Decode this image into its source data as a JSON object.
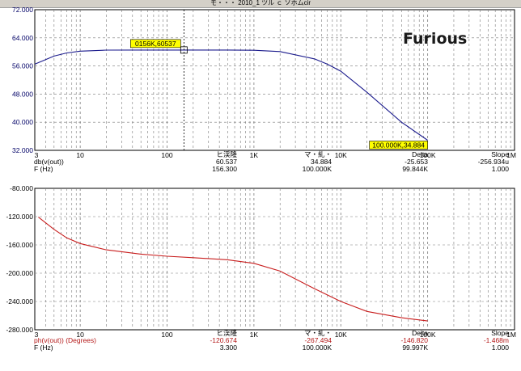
{
  "window": {
    "title": "モ・・・ 2010_1 ツル ｃ ソホムcir"
  },
  "annotation": "Furious",
  "colors": {
    "top_trace": "#1a1a8c",
    "bottom_trace": "#c81e1e",
    "grid": "#7a7a7a",
    "cursor": "#000000",
    "badge": "#ffff00"
  },
  "chart_data": [
    {
      "type": "line",
      "title": "",
      "xscale": "log",
      "xlim": [
        3,
        1000000
      ],
      "ylim": [
        32,
        72
      ],
      "y_ticks": [
        "72.000",
        "64.000",
        "56.000",
        "48.000",
        "40.000",
        "32.000"
      ],
      "x_ticks": [
        "3",
        "10",
        "100",
        "1K",
        "10K",
        "100K"
      ],
      "x_tick_values": [
        3,
        10,
        100,
        1000,
        10000,
        100000
      ],
      "series": [
        {
          "name": "db(v(out))",
          "x": [
            3,
            5,
            7,
            10,
            20,
            50,
            100,
            200,
            500,
            1000,
            2000,
            5000,
            7000,
            10000,
            20000,
            50000,
            100000
          ],
          "y": [
            56.5,
            58.8,
            59.7,
            60.2,
            60.5,
            60.53,
            60.537,
            60.537,
            60.52,
            60.45,
            60.1,
            58.0,
            56.5,
            54.5,
            48.5,
            40.0,
            34.884
          ]
        }
      ],
      "markers": [
        {
          "label": "0156K,60537",
          "x": 156.3,
          "y": 60.537
        },
        {
          "label": "100.000K,34.884",
          "x": 100000,
          "y": 34.884
        }
      ],
      "readout": {
        "headers": [
          "ヒ渓隆",
          "マ・糺・",
          "Delta",
          "Slope"
        ],
        "rows": [
          {
            "label": "db(v(out))",
            "values": [
              "60.537",
              "34.884",
              "-25.653",
              "-256.934u"
            ]
          },
          {
            "label": "F (Hz)",
            "values": [
              "156.300",
              "100.000K",
              "99.844K",
              "1.000"
            ]
          }
        ]
      }
    },
    {
      "type": "line",
      "title": "",
      "xscale": "log",
      "xlim": [
        3,
        1000000
      ],
      "ylim": [
        -280,
        -80
      ],
      "y_ticks": [
        "-80.000",
        "-120.000",
        "-160.000",
        "-200.000",
        "-240.000",
        "-280.000"
      ],
      "x_ticks": [
        "3",
        "10",
        "100",
        "1K",
        "10K",
        "100K"
      ],
      "x_tick_values": [
        3,
        10,
        100,
        1000,
        10000,
        100000
      ],
      "series": [
        {
          "name": "ph(v(out)) (Degrees)",
          "x": [
            3.3,
            5,
            7,
            10,
            20,
            50,
            100,
            200,
            500,
            1000,
            2000,
            5000,
            10000,
            20000,
            50000,
            100000
          ],
          "y": [
            -120.674,
            -138,
            -150,
            -158,
            -167,
            -173,
            -176,
            -178,
            -181,
            -186,
            -197,
            -222,
            -240,
            -254,
            -263,
            -267.494
          ]
        }
      ],
      "readout": {
        "headers": [
          "ヒ渓隆",
          "マ・糺・",
          "Delta",
          "Slope"
        ],
        "rows": [
          {
            "label": "ph(v(out)) (Degrees)",
            "values": [
              "-120.674",
              "-267.494",
              "-146.820",
              "-1.468m"
            ]
          },
          {
            "label": "F (Hz)",
            "values": [
              "3.300",
              "100.000K",
              "99.997K",
              "1.000"
            ]
          }
        ]
      }
    }
  ]
}
